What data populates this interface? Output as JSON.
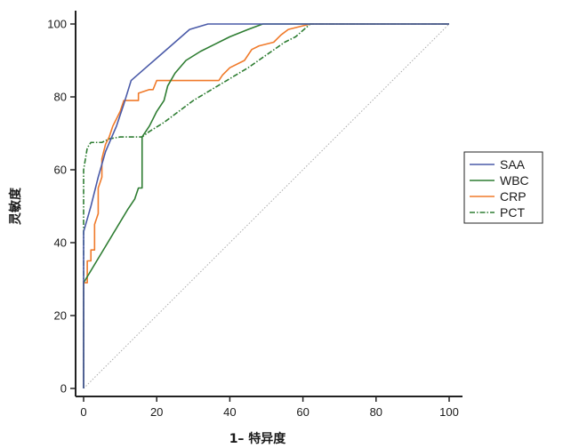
{
  "chart_data": {
    "type": "line",
    "xlabel": "1– 特异度",
    "ylabel": "灵敏度",
    "xlim": [
      0,
      100
    ],
    "ylim": [
      0,
      100
    ],
    "x_ticks": [
      0,
      20,
      40,
      60,
      80,
      100
    ],
    "y_ticks": [
      0,
      20,
      40,
      60,
      80,
      100
    ],
    "grid": false,
    "legend_position": "right",
    "reference_line": {
      "x": [
        0,
        100
      ],
      "y": [
        0,
        100
      ],
      "color": "#aaaaaa",
      "style": "dotted"
    },
    "series": [
      {
        "name": "SAA",
        "color": "#4a5aa8",
        "style": "solid",
        "points": [
          [
            0,
            0
          ],
          [
            0,
            43
          ],
          [
            2,
            50
          ],
          [
            4,
            58
          ],
          [
            6,
            65
          ],
          [
            9,
            72
          ],
          [
            11,
            78
          ],
          [
            13,
            84.5
          ],
          [
            17,
            88
          ],
          [
            21,
            91.5
          ],
          [
            25,
            95
          ],
          [
            29,
            98.5
          ],
          [
            34,
            100
          ],
          [
            50,
            100
          ],
          [
            100,
            100
          ]
        ]
      },
      {
        "name": "WBC",
        "color": "#2e7d32",
        "style": "solid",
        "points": [
          [
            0,
            0
          ],
          [
            0,
            29
          ],
          [
            3,
            34
          ],
          [
            6,
            39
          ],
          [
            9,
            44
          ],
          [
            12,
            49
          ],
          [
            14,
            52
          ],
          [
            15,
            55
          ],
          [
            16,
            55
          ],
          [
            16,
            69
          ],
          [
            18,
            72
          ],
          [
            20,
            76
          ],
          [
            22,
            79
          ],
          [
            23,
            83
          ],
          [
            25,
            86.5
          ],
          [
            28,
            90
          ],
          [
            32,
            92.5
          ],
          [
            36,
            94.5
          ],
          [
            40,
            96.5
          ],
          [
            45,
            98.5
          ],
          [
            49,
            100
          ],
          [
            100,
            100
          ]
        ]
      },
      {
        "name": "CRP",
        "color": "#f07a2a",
        "style": "solid",
        "points": [
          [
            0,
            0
          ],
          [
            0,
            29
          ],
          [
            1,
            29
          ],
          [
            1,
            35
          ],
          [
            2,
            35
          ],
          [
            2,
            38
          ],
          [
            3,
            38
          ],
          [
            3,
            45
          ],
          [
            4,
            48
          ],
          [
            4,
            55
          ],
          [
            5,
            58
          ],
          [
            5,
            63
          ],
          [
            6,
            67
          ],
          [
            7,
            69
          ],
          [
            8,
            72
          ],
          [
            9,
            74
          ],
          [
            10,
            76
          ],
          [
            11,
            79
          ],
          [
            15,
            79
          ],
          [
            15,
            81
          ],
          [
            18,
            82
          ],
          [
            19,
            82
          ],
          [
            20,
            84.5
          ],
          [
            37,
            84.5
          ],
          [
            38,
            86
          ],
          [
            40,
            88
          ],
          [
            44,
            90
          ],
          [
            46,
            93
          ],
          [
            48,
            94
          ],
          [
            52,
            95
          ],
          [
            54,
            97
          ],
          [
            56,
            98.5
          ],
          [
            62,
            100
          ],
          [
            100,
            100
          ]
        ]
      },
      {
        "name": "PCT",
        "color": "#2e7d32",
        "style": "dashdot",
        "points": [
          [
            0,
            0
          ],
          [
            0,
            60
          ],
          [
            0.5,
            63
          ],
          [
            1,
            66
          ],
          [
            2,
            67.5
          ],
          [
            5,
            67.5
          ],
          [
            7,
            68.5
          ],
          [
            10,
            69
          ],
          [
            16,
            69
          ],
          [
            18,
            70.5
          ],
          [
            22,
            73
          ],
          [
            26,
            76
          ],
          [
            30,
            79
          ],
          [
            35,
            82
          ],
          [
            40,
            85
          ],
          [
            45,
            88
          ],
          [
            50,
            91.5
          ],
          [
            55,
            95
          ],
          [
            58,
            96.5
          ],
          [
            62,
            100
          ],
          [
            100,
            100
          ]
        ]
      }
    ]
  }
}
